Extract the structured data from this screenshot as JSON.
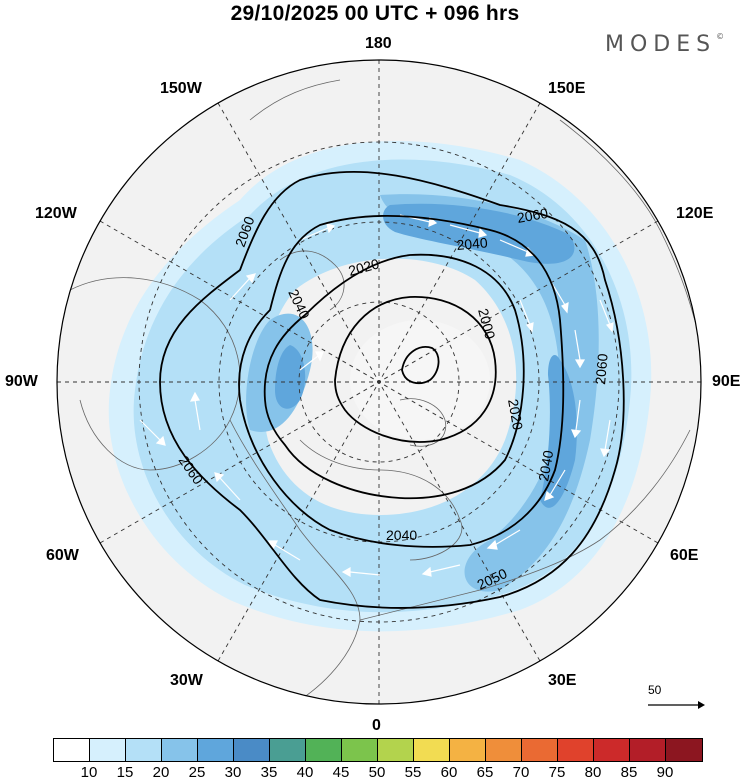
{
  "header": {
    "title": "29/10/2025  00 UTC  + 096 hrs",
    "brand": "MODES",
    "brand_mark": "©"
  },
  "longitude_labels": {
    "top": "180",
    "bottom": "0",
    "left": "90W",
    "right": "90E",
    "upper_left_1": "150W",
    "upper_left_2": "120W",
    "upper_right_1": "150E",
    "upper_right_2": "120E",
    "lower_left_1": "60W",
    "lower_left_2": "30W",
    "lower_right_1": "60E",
    "lower_right_2": "30E"
  },
  "contours": {
    "label_2060_nw": "2060",
    "label_2060_ne": "2060",
    "label_2060_e": "2060",
    "label_2060_w": "2060",
    "label_2040_n": "2040",
    "label_2040_w": "2040",
    "label_2040_e": "2040",
    "label_2040_s": "2040",
    "label_2020_n": "2020",
    "label_2020_e": "2020",
    "label_2000": "2000",
    "label_2050_s": "2050"
  },
  "reference_vector": {
    "label": "50"
  },
  "colorbar": {
    "colors": [
      "#ffffff",
      "#d6f0fd",
      "#b4e0f7",
      "#86c3ea",
      "#5fa6dc",
      "#4a8bc6",
      "#4a9e93",
      "#52b257",
      "#7cc44c",
      "#b3d34d",
      "#f2dc52",
      "#f4b243",
      "#ef8e3a",
      "#ea6a33",
      "#e0422c",
      "#cc2a2a",
      "#b31e28",
      "#8c1620"
    ],
    "ticks": [
      "10",
      "15",
      "20",
      "25",
      "30",
      "35",
      "40",
      "45",
      "50",
      "55",
      "60",
      "65",
      "70",
      "75",
      "80",
      "85",
      "90"
    ]
  }
}
